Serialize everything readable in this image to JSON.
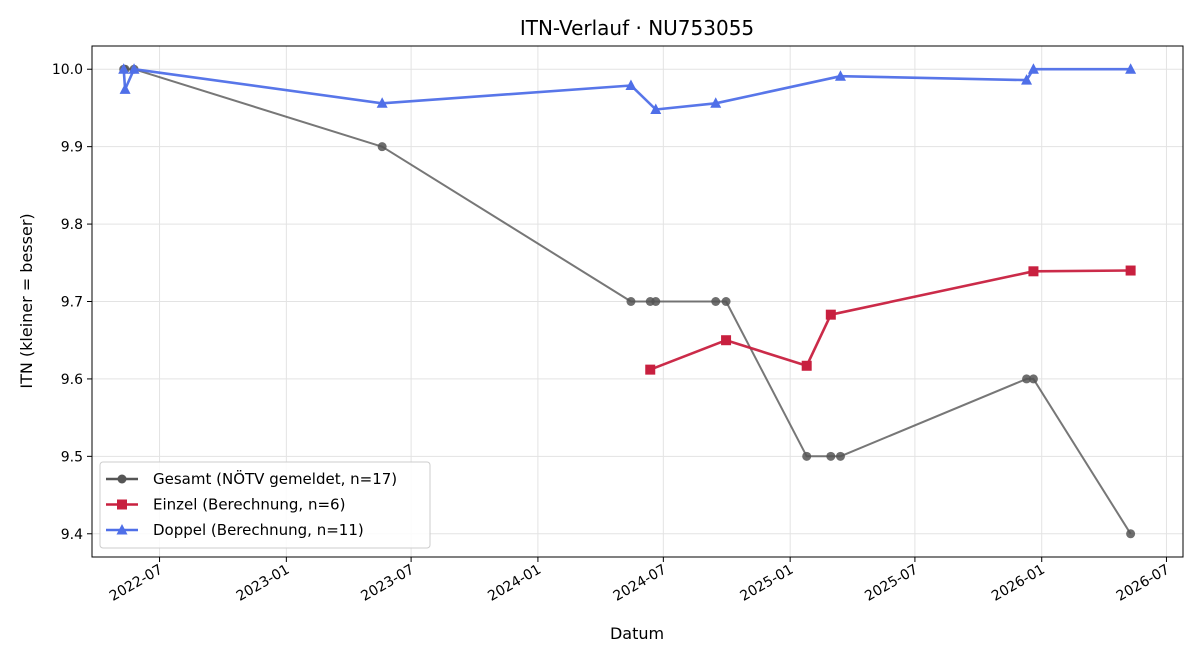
{
  "chart_data": {
    "type": "line",
    "title": "ITN-Verlauf · NU753055",
    "xlabel": "Datum",
    "ylabel": "ITN  (kleiner = besser)",
    "x_axis": "date",
    "xlim": [
      "2022-03-25",
      "2026-07-25"
    ],
    "ylim": [
      9.37,
      10.03
    ],
    "x_ticks": [
      "2022-07-01",
      "2023-01-01",
      "2023-07-01",
      "2024-01-01",
      "2024-07-01",
      "2025-01-01",
      "2025-07-01",
      "2026-01-01",
      "2026-07-01"
    ],
    "x_tick_labels": [
      "2022-07",
      "2023-01",
      "2023-07",
      "2024-01",
      "2024-07",
      "2025-01",
      "2025-07",
      "2026-01",
      "2026-07"
    ],
    "y_ticks": [
      9.4,
      9.5,
      9.6,
      9.7,
      9.8,
      9.9,
      10.0
    ],
    "y_tick_labels": [
      "9.4",
      "9.5",
      "9.6",
      "9.7",
      "9.8",
      "9.9",
      "10.0"
    ],
    "grid": true,
    "legend_position": "lower-left",
    "series": [
      {
        "name": "Gesamt (NÖTV gemeldet, n=17)",
        "color": "#555555",
        "marker": "circle",
        "x": [
          "2022-05-10",
          "2022-05-12",
          "2022-05-25",
          "2023-05-20",
          "2024-05-15",
          "2024-06-12",
          "2024-06-20",
          "2024-09-15",
          "2024-09-30",
          "2025-01-25",
          "2025-03-01",
          "2025-03-15",
          "2025-12-10",
          "2025-12-20",
          "2026-05-10"
        ],
        "values": [
          10.0,
          10.0,
          10.0,
          9.9,
          9.7,
          9.7,
          9.7,
          9.7,
          9.7,
          9.5,
          9.5,
          9.5,
          9.6,
          9.6,
          9.4
        ]
      },
      {
        "name": "Einzel (Berechnung, n=6)",
        "color": "#c8203f",
        "marker": "square",
        "x": [
          "2024-06-12",
          "2024-09-30",
          "2025-01-25",
          "2025-03-01",
          "2025-12-20",
          "2026-05-10"
        ],
        "values": [
          9.612,
          9.65,
          9.617,
          9.683,
          9.739,
          9.74
        ]
      },
      {
        "name": "Doppel (Berechnung, n=11)",
        "color": "#4f6fe8",
        "marker": "triangle",
        "x": [
          "2022-05-10",
          "2022-05-12",
          "2022-05-25",
          "2023-05-20",
          "2024-05-15",
          "2024-06-20",
          "2024-09-15",
          "2025-03-15",
          "2025-12-10",
          "2025-12-20",
          "2026-05-10"
        ],
        "values": [
          10.0,
          9.974,
          10.0,
          9.956,
          9.979,
          9.948,
          9.956,
          9.991,
          9.986,
          10.0,
          10.0
        ]
      }
    ]
  }
}
